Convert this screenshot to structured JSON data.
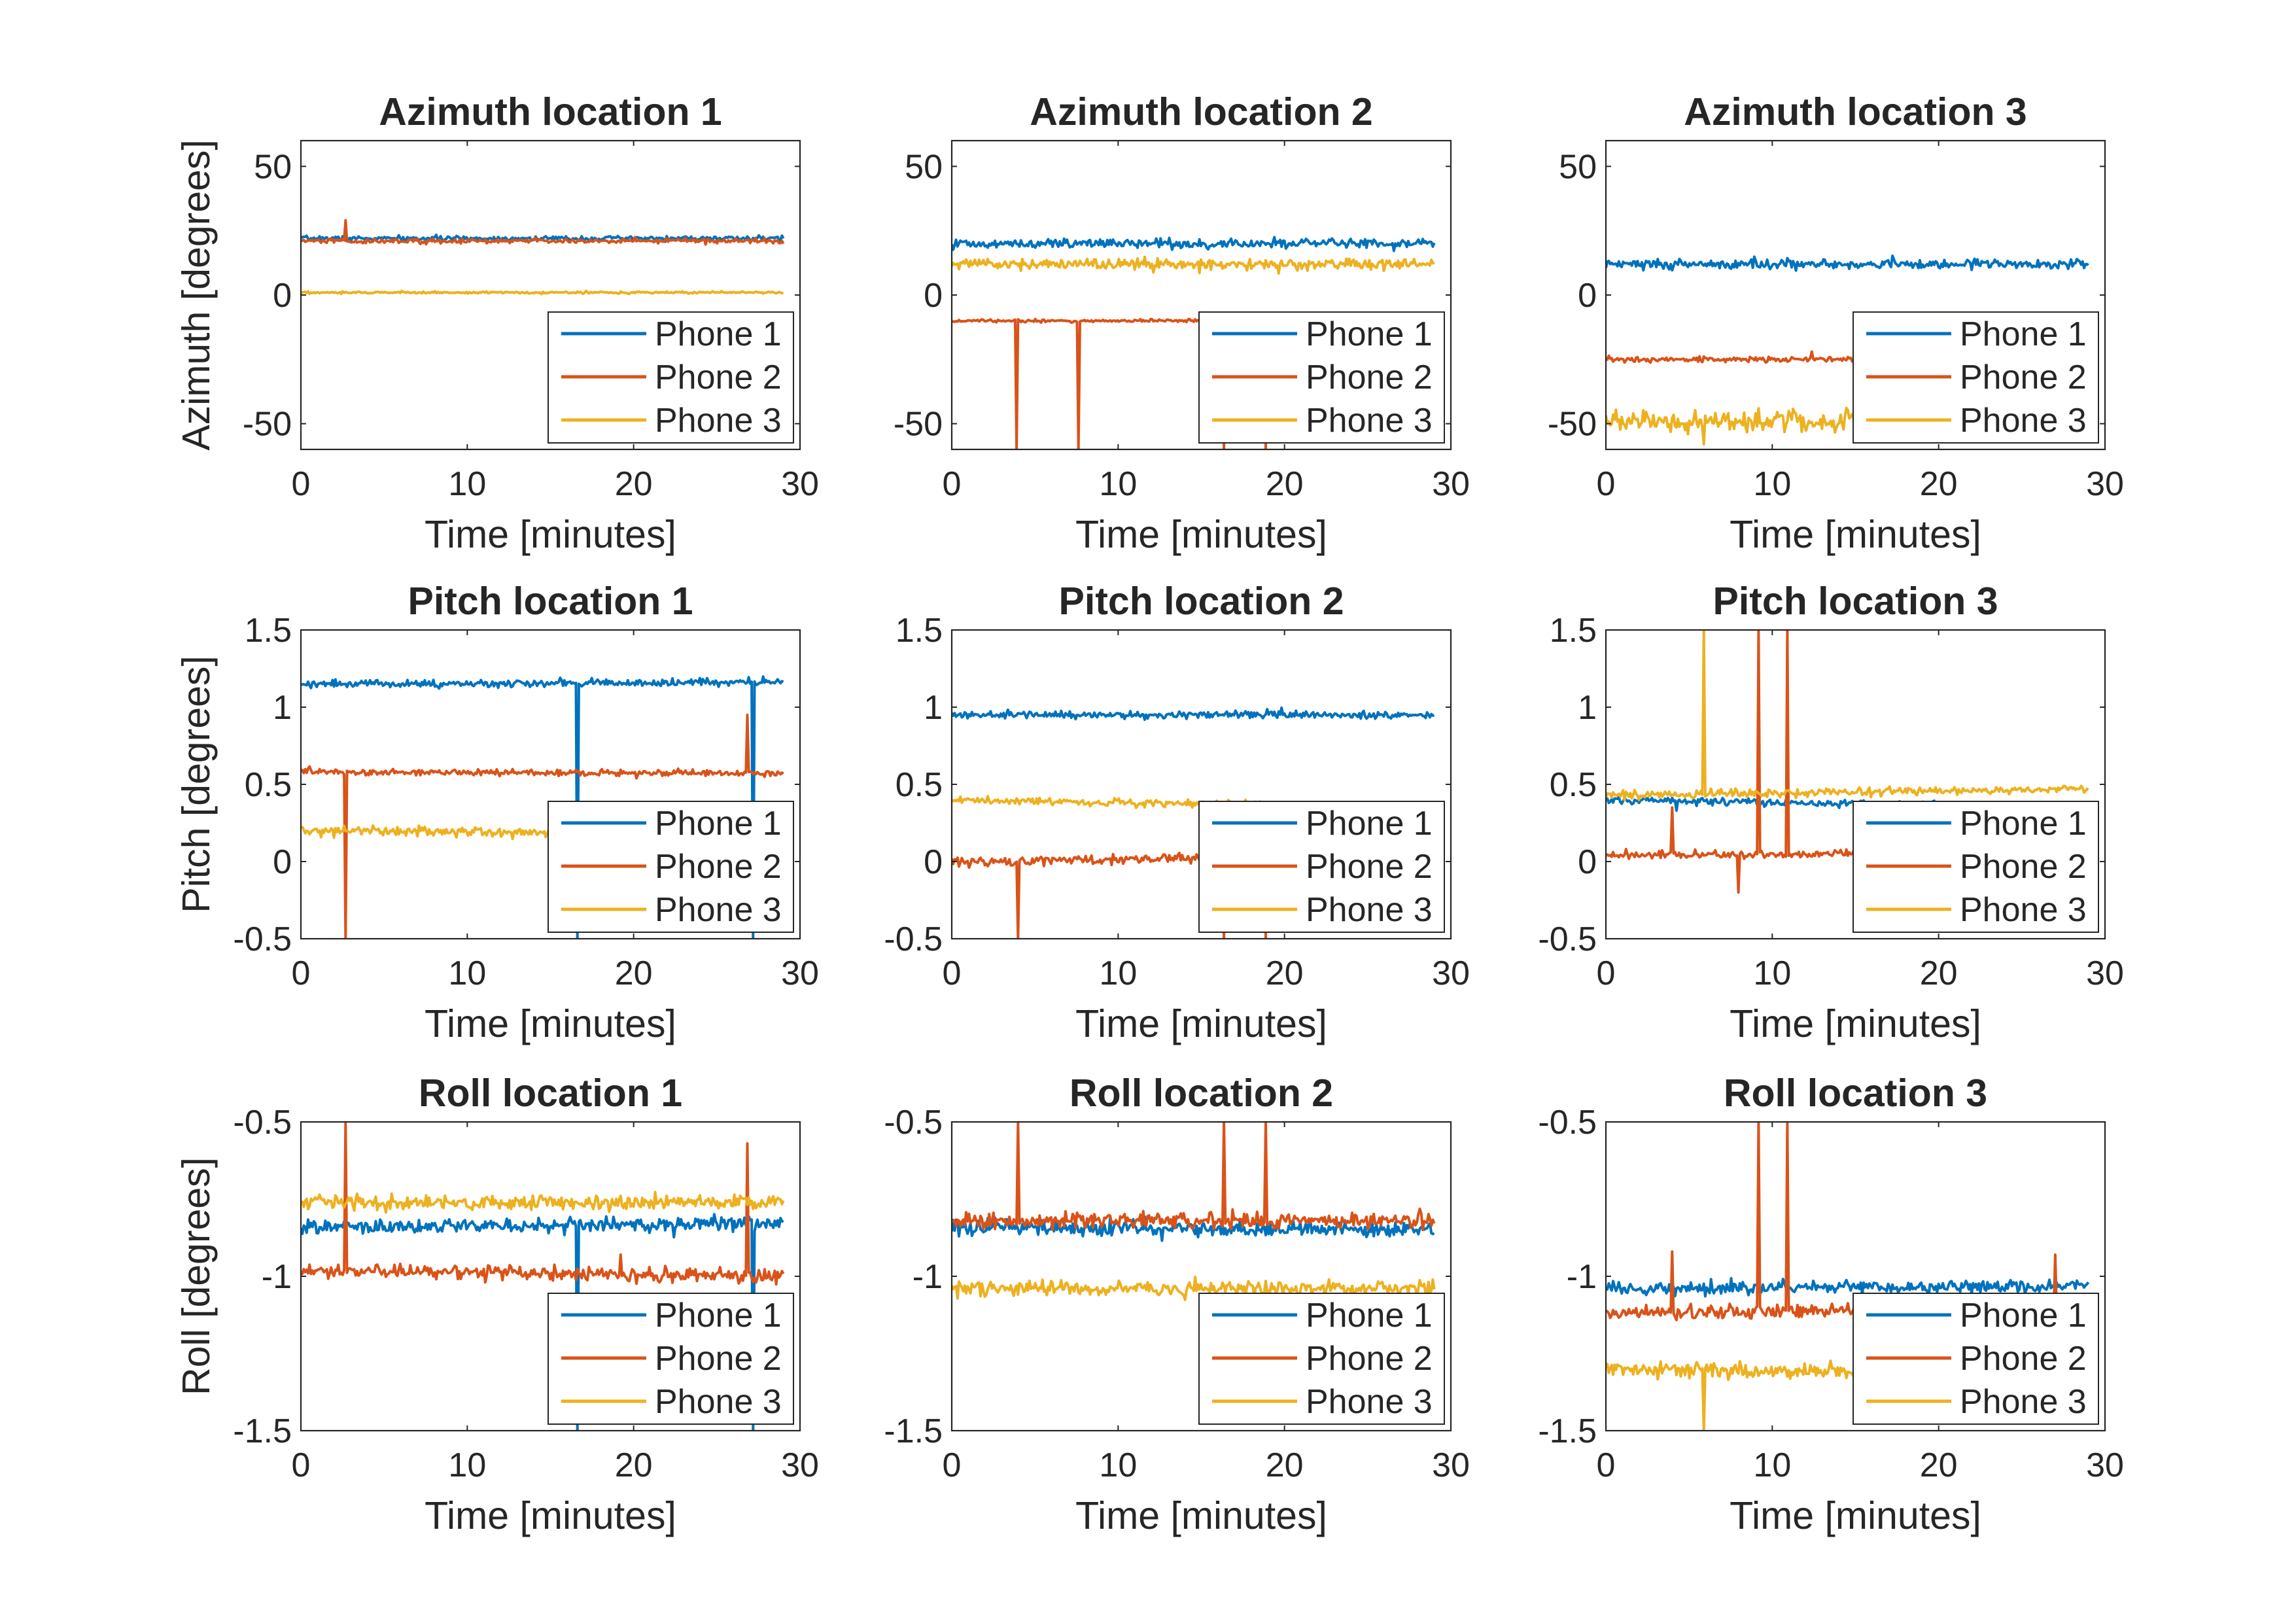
{
  "figure": {
    "colors": {
      "Phone 1": "#0072BD",
      "Phone 2": "#D95319",
      "Phone 3": "#EDB120"
    },
    "legend_placement": "bottom-right",
    "grid": false
  },
  "chart_data": [
    {
      "type": "line",
      "title": "Azimuth location 1",
      "xlabel": "Time [minutes]",
      "ylabel": "Azimuth [degrees]",
      "xlim": [
        0,
        30
      ],
      "ylim": [
        -60,
        60
      ],
      "xticks": [
        0,
        10,
        20,
        30
      ],
      "yticks": [
        -50,
        0,
        50
      ],
      "series": [
        {
          "name": "Phone 1",
          "x": [
            0,
            29
          ],
          "y": [
            22,
            22
          ],
          "noise": 0.9,
          "spikes": []
        },
        {
          "name": "Phone 2",
          "x": [
            0,
            29
          ],
          "y": [
            21,
            21
          ],
          "noise": 0.9,
          "spikes": [
            [
              2.7,
              29
            ]
          ]
        },
        {
          "name": "Phone 3",
          "x": [
            0,
            29
          ],
          "y": [
            1,
            1
          ],
          "noise": 0.4,
          "spikes": []
        }
      ]
    },
    {
      "type": "line",
      "title": "Azimuth location 2",
      "xlabel": "Time [minutes]",
      "ylabel": "",
      "xlim": [
        0,
        30
      ],
      "ylim": [
        -60,
        60
      ],
      "xticks": [
        0,
        10,
        20,
        30
      ],
      "yticks": [
        -50,
        0,
        50
      ],
      "series": [
        {
          "name": "Phone 1",
          "x": [
            0,
            29
          ],
          "y": [
            20,
            20
          ],
          "noise": 1.8,
          "spikes": []
        },
        {
          "name": "Phone 2",
          "x": [
            0,
            29
          ],
          "y": [
            -10,
            -10
          ],
          "noise": 0.6,
          "spikes": [
            [
              3.9,
              -60
            ],
            [
              7.6,
              -60
            ],
            [
              16.4,
              -60
            ],
            [
              18.9,
              -60
            ]
          ]
        },
        {
          "name": "Phone 3",
          "x": [
            0,
            29
          ],
          "y": [
            12,
            12
          ],
          "noise": 2.2,
          "spikes": []
        }
      ]
    },
    {
      "type": "line",
      "title": "Azimuth location 3",
      "xlabel": "Time [minutes]",
      "ylabel": "",
      "xlim": [
        0,
        30
      ],
      "ylim": [
        -60,
        60
      ],
      "xticks": [
        0,
        10,
        20,
        30
      ],
      "yticks": [
        -50,
        0,
        50
      ],
      "series": [
        {
          "name": "Phone 1",
          "x": [
            0,
            29
          ],
          "y": [
            12,
            12
          ],
          "noise": 2.0,
          "spikes": []
        },
        {
          "name": "Phone 2",
          "x": [
            0,
            29
          ],
          "y": [
            -25,
            -25
          ],
          "noise": 1.0,
          "spikes": [
            [
              12.4,
              -22
            ]
          ]
        },
        {
          "name": "Phone 3",
          "x": [
            0,
            29
          ],
          "y": [
            -49,
            -49
          ],
          "noise": 4.5,
          "spikes": [
            [
              5.9,
              -58
            ]
          ]
        }
      ]
    },
    {
      "type": "line",
      "title": "Pitch location 1",
      "xlabel": "Time [minutes]",
      "ylabel": "Pitch [degrees]",
      "xlim": [
        0,
        30
      ],
      "ylim": [
        -0.5,
        1.5
      ],
      "xticks": [
        0,
        10,
        20,
        30
      ],
      "yticks": [
        -0.5,
        0,
        0.5,
        1,
        1.5
      ],
      "series": [
        {
          "name": "Phone 1",
          "x": [
            0,
            29
          ],
          "y": [
            1.15,
            1.16
          ],
          "noise": 0.025,
          "spikes": [
            [
              16.6,
              -0.5
            ],
            [
              27.2,
              -0.5
            ]
          ]
        },
        {
          "name": "Phone 2",
          "x": [
            0,
            29
          ],
          "y": [
            0.58,
            0.57
          ],
          "noise": 0.02,
          "spikes": [
            [
              2.7,
              -0.5
            ],
            [
              26.8,
              0.95
            ]
          ]
        },
        {
          "name": "Phone 3",
          "x": [
            0,
            29
          ],
          "y": [
            0.2,
            0.18
          ],
          "noise": 0.03,
          "spikes": []
        }
      ]
    },
    {
      "type": "line",
      "title": "Pitch location 2",
      "xlabel": "Time [minutes]",
      "ylabel": "",
      "xlim": [
        0,
        30
      ],
      "ylim": [
        -0.5,
        1.5
      ],
      "xticks": [
        0,
        10,
        20,
        30
      ],
      "yticks": [
        -0.5,
        0,
        0.5,
        1,
        1.5
      ],
      "series": [
        {
          "name": "Phone 1",
          "x": [
            0,
            29
          ],
          "y": [
            0.95,
            0.95
          ],
          "noise": 0.025,
          "spikes": []
        },
        {
          "name": "Phone 2",
          "x": [
            0,
            29
          ],
          "y": [
            0.0,
            0.04
          ],
          "noise": 0.03,
          "spikes": [
            [
              4.0,
              -0.5
            ],
            [
              16.4,
              -0.5
            ],
            [
              18.9,
              -0.5
            ]
          ]
        },
        {
          "name": "Phone 3",
          "x": [
            0,
            29
          ],
          "y": [
            0.4,
            0.35
          ],
          "noise": 0.025,
          "spikes": []
        }
      ]
    },
    {
      "type": "line",
      "title": "Pitch location 3",
      "xlabel": "Time [minutes]",
      "ylabel": "",
      "xlim": [
        0,
        30
      ],
      "ylim": [
        -0.5,
        1.5
      ],
      "xticks": [
        0,
        10,
        20,
        30
      ],
      "yticks": [
        -0.5,
        0,
        0.5,
        1,
        1.5
      ],
      "series": [
        {
          "name": "Phone 1",
          "x": [
            0,
            29
          ],
          "y": [
            0.4,
            0.35
          ],
          "noise": 0.025,
          "spikes": [
            [
              4.2,
              0.33
            ]
          ]
        },
        {
          "name": "Phone 2",
          "x": [
            0,
            29
          ],
          "y": [
            0.04,
            0.06
          ],
          "noise": 0.025,
          "spikes": [
            [
              4.0,
              0.35
            ],
            [
              8.0,
              -0.2
            ],
            [
              9.2,
              1.5
            ],
            [
              10.9,
              1.5
            ]
          ]
        },
        {
          "name": "Phone 3",
          "x": [
            0,
            29
          ],
          "y": [
            0.43,
            0.47
          ],
          "noise": 0.025,
          "spikes": [
            [
              5.9,
              1.5
            ]
          ]
        }
      ]
    },
    {
      "type": "line",
      "title": "Roll location 1",
      "xlabel": "Time [minutes]",
      "ylabel": "Roll [degrees]",
      "xlim": [
        0,
        30
      ],
      "ylim": [
        -1.5,
        -0.5
      ],
      "xticks": [
        0,
        10,
        20,
        30
      ],
      "yticks": [
        -1.5,
        -1,
        -0.5
      ],
      "series": [
        {
          "name": "Phone 1",
          "x": [
            0,
            29
          ],
          "y": [
            -0.84,
            -0.83
          ],
          "noise": 0.022,
          "spikes": [
            [
              16.6,
              -1.5
            ],
            [
              27.2,
              -1.5
            ]
          ]
        },
        {
          "name": "Phone 2",
          "x": [
            0,
            29
          ],
          "y": [
            -0.98,
            -1.0
          ],
          "noise": 0.022,
          "spikes": [
            [
              2.7,
              -0.5
            ],
            [
              19.2,
              -0.93
            ],
            [
              26.8,
              -0.57
            ]
          ]
        },
        {
          "name": "Phone 3",
          "x": [
            0,
            29
          ],
          "y": [
            -0.76,
            -0.76
          ],
          "noise": 0.025,
          "spikes": []
        }
      ]
    },
    {
      "type": "line",
      "title": "Roll location 2",
      "xlabel": "Time [minutes]",
      "ylabel": "",
      "xlim": [
        0,
        30
      ],
      "ylim": [
        -1.5,
        -0.5
      ],
      "xticks": [
        0,
        10,
        20,
        30
      ],
      "yticks": [
        -1.5,
        -1,
        -0.5
      ],
      "series": [
        {
          "name": "Phone 1",
          "x": [
            0,
            29
          ],
          "y": [
            -0.84,
            -0.85
          ],
          "noise": 0.025,
          "spikes": []
        },
        {
          "name": "Phone 2",
          "x": [
            0,
            29
          ],
          "y": [
            -0.82,
            -0.82
          ],
          "noise": 0.025,
          "spikes": [
            [
              4.0,
              -0.5
            ],
            [
              16.4,
              -0.5
            ],
            [
              18.9,
              -0.5
            ]
          ]
        },
        {
          "name": "Phone 3",
          "x": [
            0,
            29
          ],
          "y": [
            -1.04,
            -1.04
          ],
          "noise": 0.025,
          "spikes": []
        }
      ]
    },
    {
      "type": "line",
      "title": "Roll location 3",
      "xlabel": "Time [minutes]",
      "ylabel": "",
      "xlim": [
        0,
        30
      ],
      "ylim": [
        -1.5,
        -0.5
      ],
      "xticks": [
        0,
        10,
        20,
        30
      ],
      "yticks": [
        -1.5,
        -1,
        -0.5
      ],
      "series": [
        {
          "name": "Phone 1",
          "x": [
            0,
            29
          ],
          "y": [
            -1.04,
            -1.03
          ],
          "noise": 0.022,
          "spikes": []
        },
        {
          "name": "Phone 2",
          "x": [
            0,
            29
          ],
          "y": [
            -1.12,
            -1.1
          ],
          "noise": 0.022,
          "spikes": [
            [
              4.0,
              -0.92
            ],
            [
              9.2,
              -0.5
            ],
            [
              10.9,
              -0.5
            ],
            [
              27.0,
              -0.93
            ]
          ]
        },
        {
          "name": "Phone 3",
          "x": [
            0,
            29
          ],
          "y": [
            -1.3,
            -1.32
          ],
          "noise": 0.025,
          "spikes": [
            [
              5.9,
              -1.5
            ]
          ]
        }
      ]
    }
  ]
}
